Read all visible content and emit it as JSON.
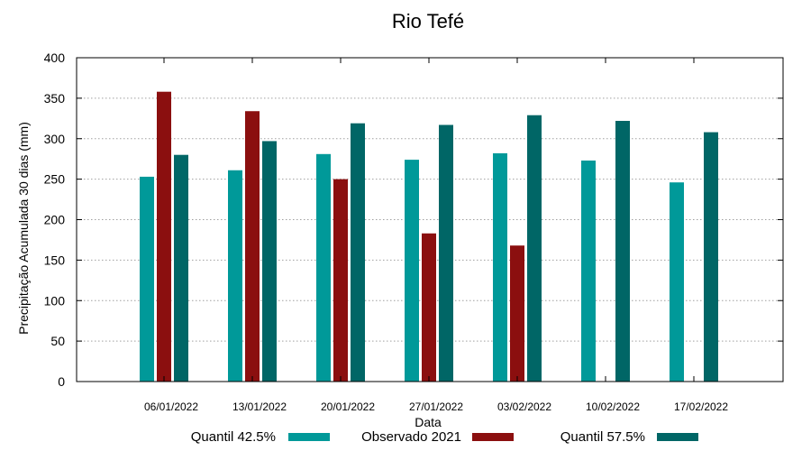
{
  "chart_data": {
    "type": "bar",
    "title": "Rio Tefé",
    "xlabel": "Data",
    "ylabel": "Precipitação Acumulada 30 dias (mm)",
    "ylim": [
      0,
      400
    ],
    "yticks": [
      0,
      50,
      100,
      150,
      200,
      250,
      300,
      350,
      400
    ],
    "grid": true,
    "legend_position": "bottom",
    "categories": [
      "06/01/2022",
      "13/01/2022",
      "20/01/2022",
      "27/01/2022",
      "03/02/2022",
      "10/02/2022",
      "17/02/2022"
    ],
    "series": [
      {
        "name": "Quantil 42.5%",
        "color": "#009999",
        "values": [
          253,
          261,
          281,
          274,
          282,
          273,
          246
        ]
      },
      {
        "name": "Observado 2021",
        "color": "#8b0f0f",
        "values": [
          358,
          334,
          250,
          183,
          168,
          null,
          null
        ]
      },
      {
        "name": "Quantil 57.5%",
        "color": "#006666",
        "values": [
          280,
          297,
          319,
          317,
          329,
          322,
          308
        ]
      }
    ]
  }
}
